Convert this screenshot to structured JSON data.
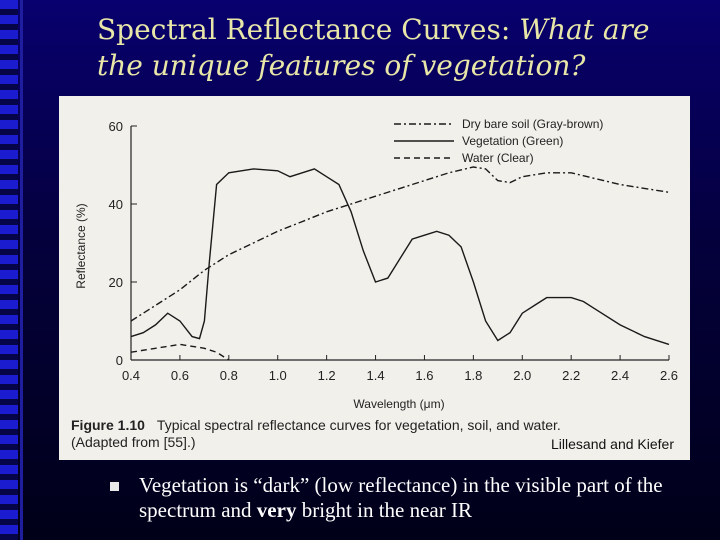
{
  "slide": {
    "title_regular": "Spectral Reflectance Curves: ",
    "title_italic": "What are the unique features of vegetation?",
    "credit": "Lillesand and Kiefer",
    "bullet_part1": "Vegetation is “dark” (low reflectance) in the visible part of the spectrum and ",
    "bullet_bold": "very",
    "bullet_part2": " bright in the near IR"
  },
  "chart_data": {
    "type": "line",
    "xlabel": "Wavelength (μm)",
    "ylabel": "Reflectance (%)",
    "xlim": [
      0.4,
      2.6
    ],
    "ylim": [
      0,
      60
    ],
    "xticks": [
      "0.4",
      "0.6",
      "0.8",
      "1.0",
      "1.2",
      "1.4",
      "1.6",
      "1.8",
      "2.0",
      "2.2",
      "2.4",
      "2.6"
    ],
    "yticks": [
      "0",
      "20",
      "40",
      "60"
    ],
    "caption_label": "Figure 1.10",
    "caption_text": "Typical spectral reflectance curves for vegetation, soil, and water.",
    "caption_source": "(Adapted from [55].)",
    "series": [
      {
        "name": "Dry bare soil (Gray-brown)",
        "style": "dashdot",
        "x": [
          0.4,
          0.5,
          0.6,
          0.7,
          0.8,
          0.9,
          1.0,
          1.1,
          1.2,
          1.3,
          1.4,
          1.5,
          1.6,
          1.7,
          1.8,
          1.85,
          1.9,
          1.95,
          2.0,
          2.1,
          2.2,
          2.3,
          2.4,
          2.5,
          2.6
        ],
        "y": [
          10,
          14,
          18,
          23,
          27,
          30,
          33,
          35.5,
          38,
          40,
          42,
          44,
          46,
          48,
          49.5,
          49,
          46,
          45.5,
          47,
          48,
          48,
          46.5,
          45,
          44,
          43
        ]
      },
      {
        "name": "Vegetation (Green)",
        "style": "solid",
        "x": [
          0.4,
          0.45,
          0.5,
          0.55,
          0.6,
          0.65,
          0.68,
          0.7,
          0.72,
          0.75,
          0.8,
          0.9,
          1.0,
          1.05,
          1.1,
          1.15,
          1.2,
          1.25,
          1.3,
          1.35,
          1.4,
          1.45,
          1.5,
          1.55,
          1.6,
          1.65,
          1.7,
          1.75,
          1.8,
          1.85,
          1.9,
          1.95,
          2.0,
          2.05,
          2.1,
          2.2,
          2.25,
          2.3,
          2.4,
          2.5,
          2.6
        ],
        "y": [
          6,
          7,
          9,
          12,
          10,
          6,
          5.5,
          10,
          25,
          45,
          48,
          49,
          48.5,
          47,
          48,
          49,
          47,
          45,
          38,
          28,
          20,
          21,
          26,
          31,
          32,
          33,
          32,
          29,
          20,
          10,
          5,
          7,
          12,
          14,
          16,
          16,
          15,
          13,
          9,
          6,
          4
        ]
      },
      {
        "name": "Water (Clear)",
        "style": "dashed",
        "x": [
          0.4,
          0.5,
          0.6,
          0.7,
          0.75,
          0.8
        ],
        "y": [
          2,
          3,
          4,
          3,
          2,
          0
        ]
      }
    ]
  }
}
